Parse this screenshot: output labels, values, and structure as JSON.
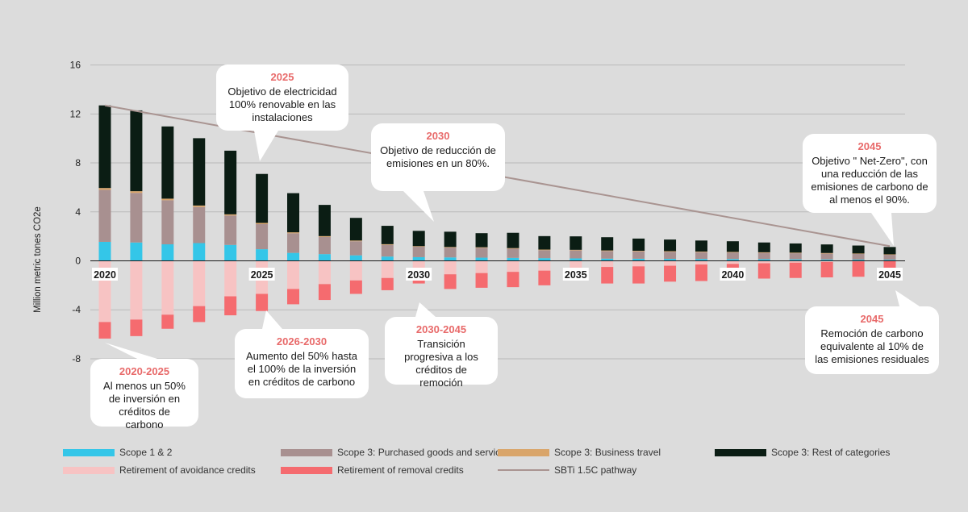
{
  "chart_data": {
    "type": "bar",
    "title": "",
    "ylabel": "Million metric tones CO2e",
    "ylim": [
      -8,
      16
    ],
    "yticks": [
      16,
      12,
      8,
      4,
      0,
      -4,
      -8
    ],
    "years": [
      2020,
      2021,
      2022,
      2023,
      2024,
      2025,
      2026,
      2027,
      2028,
      2029,
      2030,
      2031,
      2032,
      2033,
      2034,
      2035,
      2036,
      2037,
      2038,
      2039,
      2040,
      2041,
      2042,
      2043,
      2044,
      2045
    ],
    "xtick_labels": {
      "2020": "2020",
      "2025": "2025",
      "2030": "2030",
      "2035": "2035",
      "2040": "2040",
      "2045": "2045"
    },
    "series": [
      {
        "name": "Scope 1 & 2",
        "color": "#34c6e8",
        "stack": "pos",
        "values": [
          1.55,
          1.5,
          1.35,
          1.45,
          1.3,
          0.95,
          0.65,
          0.55,
          0.45,
          0.35,
          0.3,
          0.28,
          0.26,
          0.24,
          0.22,
          0.2,
          0.18,
          0.17,
          0.16,
          0.15,
          0.14,
          0.13,
          0.12,
          0.11,
          0.1,
          0.09
        ]
      },
      {
        "name": "Scope 3: Purchased goods and services",
        "color": "#a89090",
        "stack": "pos",
        "values": [
          4.25,
          4.05,
          3.6,
          2.95,
          2.4,
          2.05,
          1.6,
          1.4,
          1.15,
          0.95,
          0.85,
          0.8,
          0.8,
          0.75,
          0.65,
          0.65,
          0.62,
          0.6,
          0.58,
          0.56,
          0.54,
          0.52,
          0.5,
          0.48,
          0.46,
          0.4
        ]
      },
      {
        "name": "Scope 3: Business travel",
        "color": "#d9a56a",
        "stack": "pos",
        "values": [
          0.15,
          0.14,
          0.13,
          0.12,
          0.1,
          0.1,
          0.08,
          0.07,
          0.06,
          0.06,
          0.05,
          0.05,
          0.05,
          0.05,
          0.05,
          0.05,
          0.05,
          0.05,
          0.05,
          0.05,
          0.05,
          0.05,
          0.05,
          0.05,
          0.04,
          0.04
        ]
      },
      {
        "name": "Scope 3: Rest of categories",
        "color": "#0b1d14",
        "stack": "pos",
        "values": [
          6.75,
          6.6,
          5.9,
          5.5,
          5.2,
          4.0,
          3.2,
          2.55,
          1.85,
          1.5,
          1.25,
          1.25,
          1.15,
          1.25,
          1.1,
          1.1,
          1.08,
          1.0,
          0.95,
          0.9,
          0.87,
          0.8,
          0.75,
          0.7,
          0.65,
          0.6
        ]
      },
      {
        "name": "Retirement of avoidance credits",
        "color": "#f7c3c3",
        "stack": "neg",
        "values": [
          -5.0,
          -4.8,
          -4.4,
          -3.7,
          -2.9,
          -2.7,
          -2.3,
          -1.9,
          -1.6,
          -1.4,
          -1.2,
          -1.1,
          -1.0,
          -0.9,
          -0.8,
          -0.6,
          -0.5,
          -0.45,
          -0.4,
          -0.3,
          -0.25,
          -0.2,
          -0.15,
          -0.1,
          -0.05,
          -0.03
        ]
      },
      {
        "name": "Retirement of removal credits",
        "color": "#f56b6f",
        "stack": "neg",
        "values": [
          -1.35,
          -1.35,
          -1.15,
          -1.3,
          -1.55,
          -1.4,
          -1.25,
          -1.3,
          -1.1,
          -1.0,
          -0.65,
          -1.2,
          -1.2,
          -1.25,
          -1.2,
          -0.3,
          -1.35,
          -1.4,
          -1.3,
          -1.35,
          -0.55,
          -1.25,
          -1.25,
          -1.25,
          -1.25,
          -0.6
        ]
      }
    ],
    "lines": [
      {
        "name": "SBTi 1.5C pathway",
        "color": "#a99491",
        "x": [
          2020,
          2045
        ],
        "y": [
          12.7,
          1.2
        ]
      }
    ],
    "legend_position": "bottom"
  },
  "callouts": [
    {
      "year": "2025",
      "text": "Objetivo de electricidad 100% renovable en las instalaciones"
    },
    {
      "year": "2030",
      "text": "Objetivo de reducción de emisiones en un 80%."
    },
    {
      "year": "2045",
      "text": "Objetivo \" Net-Zero\", con una reducción de las emisiones de carbono de al menos el 90%."
    },
    {
      "year": "2020-2025",
      "text": "Al menos un 50% de inversión en créditos de carbono"
    },
    {
      "year": "2026-2030",
      "text": "Aumento del 50% hasta el 100% de la inversión en créditos de carbono"
    },
    {
      "year": "2030-2045",
      "text": "Transición progresiva a los créditos de remoción"
    },
    {
      "year": "2045",
      "text": "Remoción de carbono equivalente al 10% de las emisiones residuales"
    }
  ],
  "legend": [
    {
      "label": "Scope 1 & 2",
      "color": "#34c6e8",
      "kind": "box"
    },
    {
      "label": "Scope 3: Purchased goods and services",
      "color": "#a89090",
      "kind": "box"
    },
    {
      "label": "Scope 3: Business travel",
      "color": "#d9a56a",
      "kind": "box"
    },
    {
      "label": "Scope 3: Rest of categories",
      "color": "#0b1d14",
      "kind": "box"
    },
    {
      "label": "Retirement of avoidance credits",
      "color": "#f7c3c3",
      "kind": "box"
    },
    {
      "label": "Retirement of removal credits",
      "color": "#f56b6f",
      "kind": "box"
    },
    {
      "label": "SBTi 1.5C pathway",
      "color": "#a99491",
      "kind": "line"
    }
  ]
}
